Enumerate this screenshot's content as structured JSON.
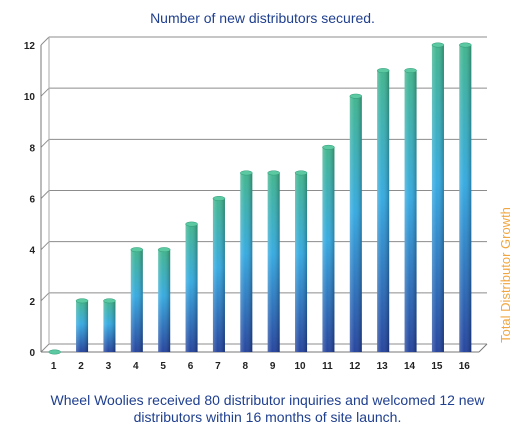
{
  "chart_data": {
    "type": "bar",
    "title": "Number of new distributors secured.",
    "ylabel": "Total Distributor Growth",
    "xlabel": "",
    "categories": [
      "1",
      "2",
      "3",
      "4",
      "5",
      "6",
      "7",
      "8",
      "9",
      "10",
      "11",
      "12",
      "13",
      "14",
      "15",
      "16"
    ],
    "values": [
      0,
      2,
      2,
      4,
      4,
      5,
      6,
      7,
      7,
      7,
      8,
      10,
      11,
      11,
      12,
      12
    ],
    "ylim": [
      0,
      12
    ],
    "yticks": [
      "0",
      "2",
      "4",
      "6",
      "8",
      "10",
      "12"
    ],
    "grid": true,
    "colors": {
      "bar_top": "#3ab38a",
      "bar_mid": "#2fa8e0",
      "bar_bottom": "#1d3d9a",
      "gridline": "#8c8c8c",
      "ylabel": "#f0a742",
      "text": "#1f3f8f"
    }
  },
  "caption": "Wheel Woolies received 80 distributor inquiries and welcomed 12 new distributors within 16 months of site launch."
}
